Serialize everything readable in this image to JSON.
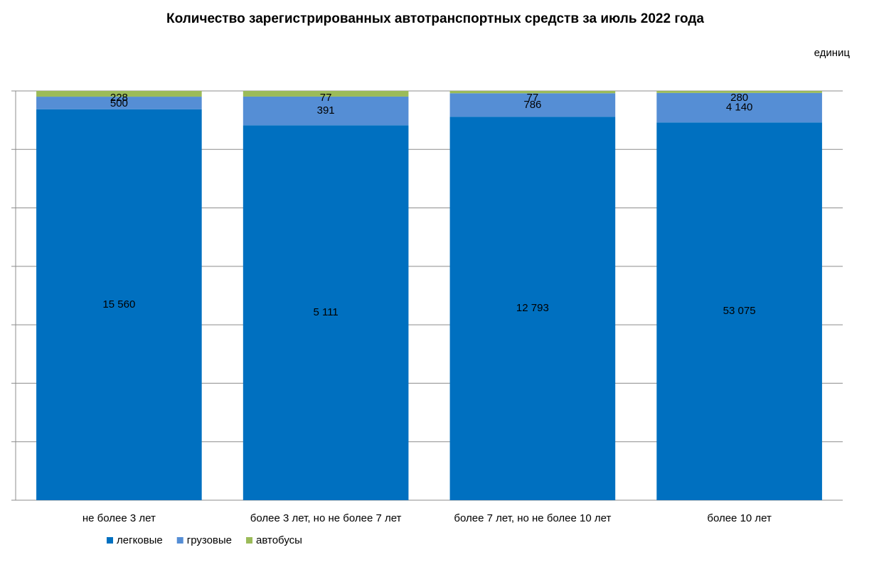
{
  "chart_data": {
    "type": "bar",
    "stacked": "percent",
    "title": "Количество зарегистрированных автотранспортных средств за июль 2022 года",
    "unit_label": "единиц",
    "categories": [
      "не более 3 лет",
      "более 3 лет, но не более 7 лет",
      "более 7 лет, но не более 10 лет",
      "более 10 лет"
    ],
    "series": [
      {
        "name": "легковые",
        "color": "#0070c0",
        "values": [
          15560,
          5111,
          12793,
          53075
        ],
        "value_labels": [
          "15 560",
          "5 111",
          "12 793",
          "53 075"
        ]
      },
      {
        "name": "грузовые",
        "color": "#558ed5",
        "values": [
          500,
          391,
          786,
          4140
        ],
        "value_labels": [
          "500",
          "391",
          "786",
          "4 140"
        ]
      },
      {
        "name": "автобусы",
        "color": "#9bbb59",
        "values": [
          228,
          77,
          77,
          280
        ],
        "value_labels": [
          "228",
          "77",
          "77",
          "280"
        ]
      }
    ],
    "ylim": [
      0,
      100
    ],
    "yticks": [
      0,
      14.29,
      28.57,
      42.86,
      57.14,
      71.43,
      85.71,
      100
    ],
    "grid": true,
    "legend": "bottom"
  }
}
